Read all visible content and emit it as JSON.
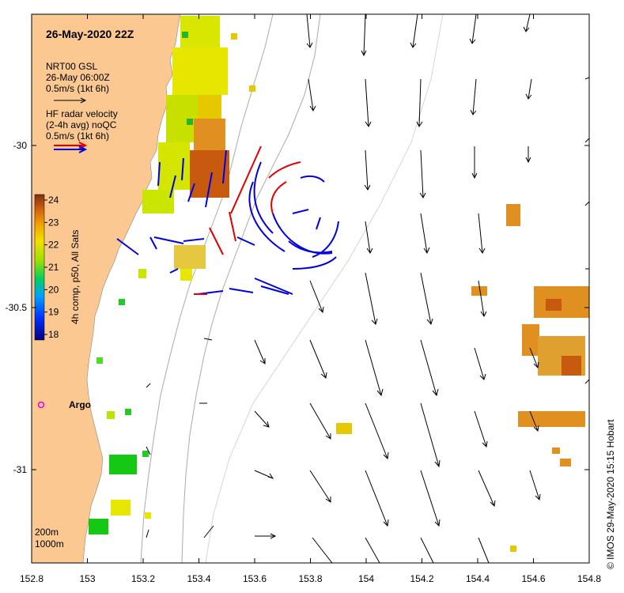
{
  "title": "26-May-2020 22Z",
  "legend_model": {
    "line1": "NRT00 GSL",
    "line2": "26-May 06:00Z",
    "line3": "0.5m/s (1kt 6h)"
  },
  "legend_radar": {
    "line1": "HF radar velocity",
    "line2": "(2-4h avg) noQC",
    "line3": "0.5m/s (1kt 6h)"
  },
  "colorbar": {
    "label": "4h comp, p50, All Sats",
    "ticks": [
      "24",
      "23",
      "22",
      "21",
      "20",
      "19",
      "18"
    ]
  },
  "x_ticks": [
    "152.8",
    "153",
    "153.2",
    "153.4",
    "153.6",
    "153.8",
    "154",
    "154.2",
    "154.4",
    "154.6",
    "154.8"
  ],
  "y_ticks": [
    "-30",
    "-30.5",
    "-31"
  ],
  "argo_label": "Argo",
  "depth_labels": [
    "200m",
    "1000m"
  ],
  "credit": "© IMOS 29-May-2020 15:15 Hobart",
  "colors": {
    "land": "#fac890",
    "model_arrow": "#000000",
    "radar_red": "#e00000",
    "radar_blue": "#0000e0",
    "argo": "#e000e0"
  }
}
